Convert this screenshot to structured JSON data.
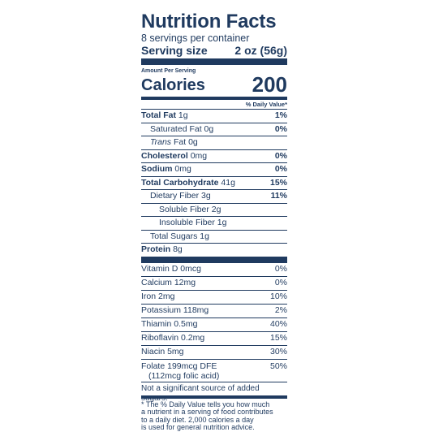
{
  "label": {
    "title": "Nutrition Facts",
    "servings_per_container": "8 servings per container",
    "serving_size_label": "Serving size",
    "serving_size_value": "2 oz (56g)",
    "amount_per_serving": "Amount Per Serving",
    "calories_label": "Calories",
    "calories_value": "200",
    "dv_header": "% Daily Value*",
    "nutrients": [
      {
        "name": "Total Fat",
        "amount": "1g",
        "dv": "1%"
      },
      {
        "name": "Saturated Fat",
        "amount": "0g",
        "dv": "0%"
      },
      {
        "name": "Trans",
        "name_rest": "Fat",
        "amount": "0g",
        "dv": ""
      },
      {
        "name": "Cholesterol",
        "amount": "0mg",
        "dv": "0%"
      },
      {
        "name": "Sodium",
        "amount": "0mg",
        "dv": "0%"
      },
      {
        "name": "Total Carbohydrate",
        "amount": "41g",
        "dv": "15%"
      },
      {
        "name": "Dietary Fiber",
        "amount": "3g",
        "dv": "11%"
      },
      {
        "name": "Soluble Fiber",
        "amount": "2g",
        "dv": ""
      },
      {
        "name": "Insoluble Fiber",
        "amount": "1g",
        "dv": ""
      },
      {
        "name": "Total Sugars",
        "amount": "1g",
        "dv": ""
      },
      {
        "name": "Protein",
        "amount": "8g",
        "dv": ""
      }
    ],
    "vitamins": [
      {
        "text": "Vitamin D 0mcg",
        "dv": "0%"
      },
      {
        "text": "Calcium 12mg",
        "dv": "0%"
      },
      {
        "text": "Iron 2mg",
        "dv": "10%"
      },
      {
        "text": "Potassium 118mg",
        "dv": "2%"
      },
      {
        "text": "Thiamin 0.5mg",
        "dv": "40%"
      },
      {
        "text": "Riboflavin 0.2mg",
        "dv": "15%"
      },
      {
        "text": "Niacin 5mg",
        "dv": "30%"
      }
    ],
    "folate": {
      "line1": "Folate 199mcg DFE",
      "line2": "(112mcg folic acid)",
      "dv": "50%"
    },
    "added_sugars_note": "Not a significant source of added sugars.",
    "footnote": [
      "* The % Daily Value tells you how much",
      "a nutrient in a serving of food contributes",
      "to a daily diet. 2,000 calories a day",
      "is used for general nutrition advice."
    ]
  },
  "colors": {
    "ink": "#1f3a5f",
    "background": "#ffffff"
  }
}
